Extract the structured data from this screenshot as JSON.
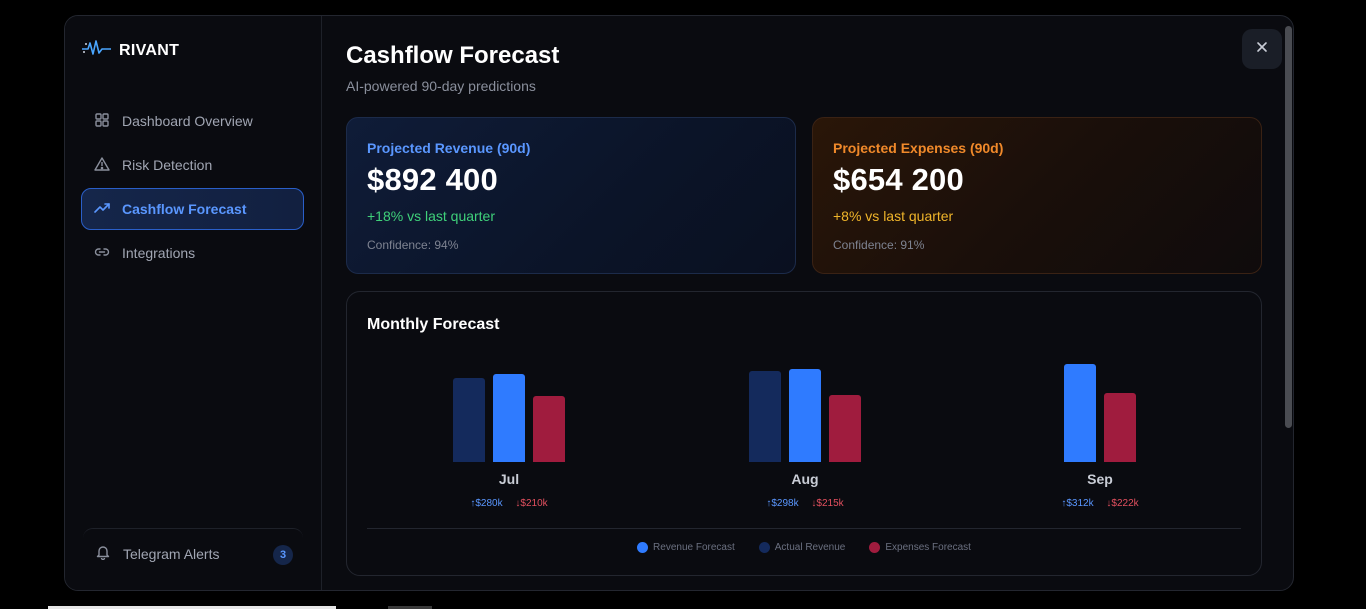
{
  "brand": {
    "name": "RIVANT",
    "logo_icon": "pulse-logo-icon"
  },
  "sidebar": {
    "items": [
      {
        "label": "Dashboard Overview",
        "icon": "grid-icon"
      },
      {
        "label": "Risk Detection",
        "icon": "warning-icon"
      },
      {
        "label": "Cashflow Forecast",
        "icon": "trend-up-icon",
        "active": true
      },
      {
        "label": "Integrations",
        "icon": "link-icon"
      }
    ],
    "telegram": {
      "label": "Telegram Alerts",
      "icon": "bell-icon",
      "badge": "3"
    }
  },
  "header": {
    "title": "Cashflow Forecast",
    "subtitle": "AI-powered 90-day predictions",
    "close_icon": "close-icon"
  },
  "cards": {
    "revenue": {
      "label": "Projected Revenue (90d)",
      "value": "$892 400",
      "change": "+18% vs last quarter",
      "confidence": "Confidence: 94%"
    },
    "expenses": {
      "label": "Projected Expenses (90d)",
      "value": "$654 200",
      "change": "+8% vs last quarter",
      "confidence": "Confidence: 91%"
    }
  },
  "forecast": {
    "title": "Monthly Forecast",
    "months": [
      {
        "label": "Jul",
        "up": "↑$280k",
        "down": "↓$210k"
      },
      {
        "label": "Aug",
        "up": "↑$298k",
        "down": "↓$215k"
      },
      {
        "label": "Sep",
        "up": "↑$312k",
        "down": "↓$222k"
      }
    ],
    "legend": {
      "revenue": "Revenue Forecast",
      "actual": "Actual Revenue",
      "expenses": "Expenses Forecast"
    }
  },
  "chart_data": {
    "type": "bar",
    "categories": [
      "Jul",
      "Aug",
      "Sep"
    ],
    "series": [
      {
        "name": "Actual Revenue",
        "values": [
          270,
          290,
          null
        ]
      },
      {
        "name": "Revenue Forecast",
        "values": [
          280,
          298,
          312
        ]
      },
      {
        "name": "Expenses Forecast",
        "values": [
          210,
          215,
          222
        ]
      }
    ],
    "colors": {
      "Actual Revenue": "#142a5c",
      "Revenue Forecast": "#2f7bff",
      "Expenses Forecast": "#a01c3e"
    }
  }
}
